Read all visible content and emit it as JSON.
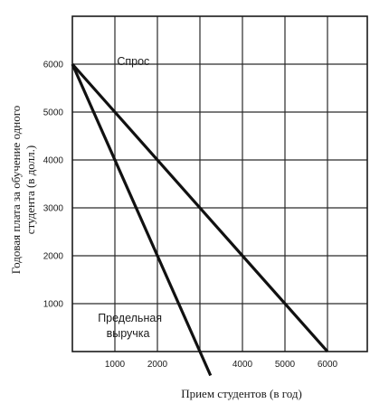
{
  "chart_data": {
    "type": "line",
    "title": "",
    "xlabel": "Прием студентов (в год)",
    "ylabel": "Годовая плата за обучение одного студента (в долл.)",
    "xlim": [
      0,
      6500
    ],
    "ylim": [
      0,
      6500
    ],
    "x_ticks": [
      {
        "value": 1000,
        "label": "1000"
      },
      {
        "value": 2000,
        "label": "2000"
      },
      {
        "value": 4000,
        "label": "4000"
      },
      {
        "value": 5000,
        "label": "5000"
      },
      {
        "value": 6000,
        "label": "6000"
      }
    ],
    "y_ticks": [
      {
        "value": 1000,
        "label": "1000"
      },
      {
        "value": 2000,
        "label": "2000"
      },
      {
        "value": 3000,
        "label": "3000"
      },
      {
        "value": 4000,
        "label": "4000"
      },
      {
        "value": 5000,
        "label": "5000"
      },
      {
        "value": 6000,
        "label": "6000"
      }
    ],
    "grid": true,
    "series": [
      {
        "name": "Спрос",
        "x": [
          0,
          6000
        ],
        "y": [
          6000,
          0
        ]
      },
      {
        "name": "Предельная выручка",
        "x": [
          0,
          3250
        ],
        "y": [
          6000,
          -500
        ]
      }
    ],
    "annotations": [
      {
        "text": "Спрос",
        "x": 1050,
        "y": 5980
      },
      {
        "text": "Предельная",
        "x": 600,
        "y": 620
      },
      {
        "text": "выручка",
        "x": 800,
        "y": 300
      }
    ]
  }
}
